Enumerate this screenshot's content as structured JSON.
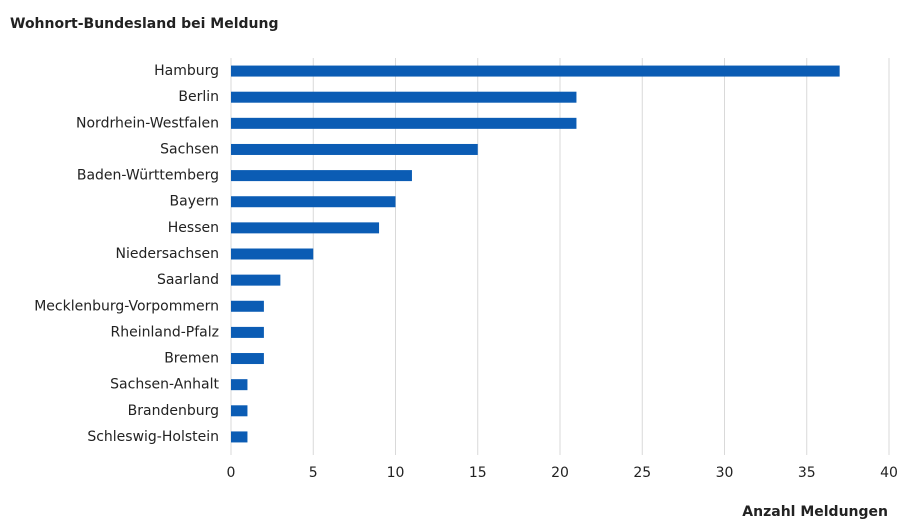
{
  "chart_data": {
    "type": "hbar",
    "title": "Wohnort-Bundesland bei Meldung",
    "x_label": "Anzahl Meldungen",
    "categories": [
      "Hamburg",
      "Berlin",
      "Nordrhein-Westfalen",
      "Sachsen",
      "Baden-Württemberg",
      "Bayern",
      "Hessen",
      "Niedersachsen",
      "Saarland",
      "Mecklenburg-Vorpommern",
      "Rheinland-Pfalz",
      "Bremen",
      "Sachsen-Anhalt",
      "Brandenburg",
      "Schleswig-Holstein"
    ],
    "values": [
      37,
      21,
      21,
      15,
      11,
      10,
      9,
      5,
      3,
      2,
      2,
      2,
      1,
      1,
      1
    ],
    "color": "#0b5cb4",
    "xlim": [
      0,
      40
    ],
    "xticks": [
      0,
      5,
      10,
      15,
      20,
      25,
      30,
      35,
      40
    ],
    "grid": true
  }
}
